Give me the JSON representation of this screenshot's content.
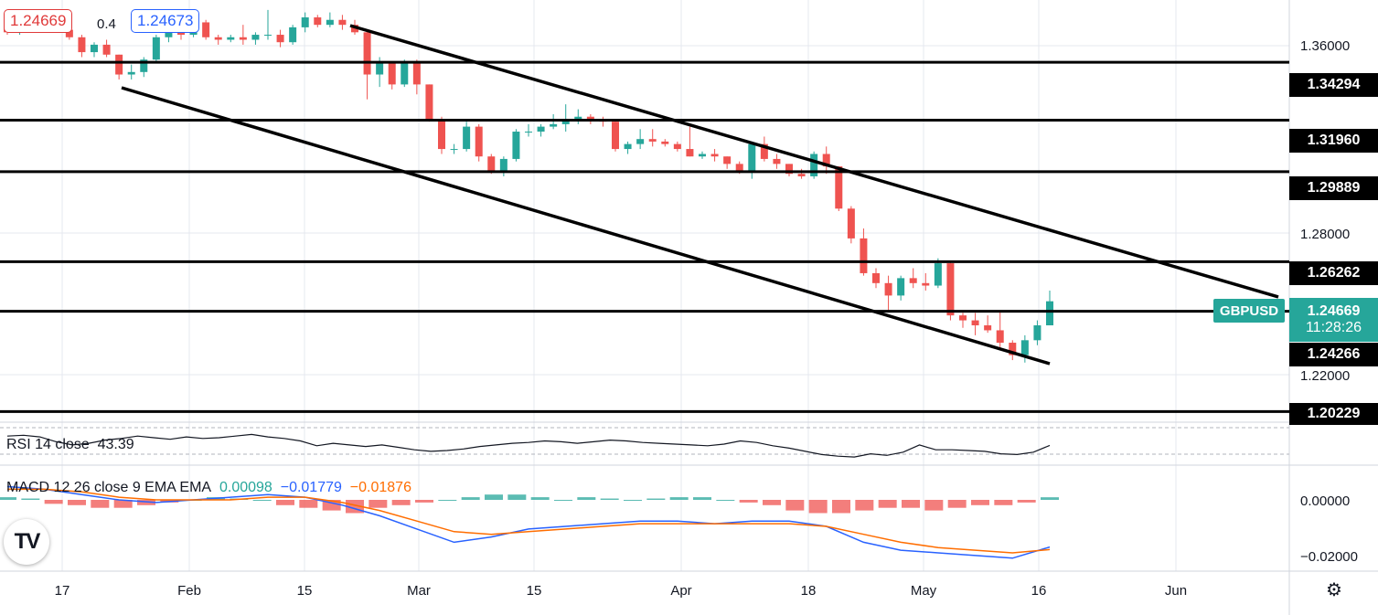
{
  "header": {
    "bid": "1.24669",
    "spread": "0.4",
    "ask": "1.24673"
  },
  "symbol": "GBPUSD",
  "current": {
    "price": "1.24669",
    "countdown": "11:28:26"
  },
  "levels": [
    "1.34294",
    "1.31960",
    "1.29889",
    "1.26262",
    "1.24266",
    "1.20229"
  ],
  "price_axis_labels": [
    "1.36000",
    "1.28000",
    "1.22000"
  ],
  "time_axis_labels": [
    "17",
    "Feb",
    "15",
    "Mar",
    "15",
    "Apr",
    "18",
    "May",
    "16",
    "Jun"
  ],
  "rsi": {
    "label": "RSI 14 close",
    "value": "43.39"
  },
  "macd": {
    "label": "MACD 12 26 close 9 EMA EMA",
    "hist": "0.00098",
    "macd": "−0.01779",
    "signal": "−0.01876",
    "axis_labels": [
      "0.00000",
      "−0.02000"
    ]
  },
  "colors": {
    "up": "#26a69a",
    "down": "#ef5350",
    "macd_line": "#2962ff",
    "signal_line": "#ff6d00",
    "hist_up": "#26a69a",
    "hist_down": "#ef5350"
  },
  "icons": {
    "logo": "tradingview-logo-icon",
    "settings": "gear-icon"
  },
  "chart_data": {
    "type": "candlestick",
    "symbol": "GBPUSD",
    "timeframe": "daily",
    "ylim": [
      1.198,
      1.368
    ],
    "horizontal_levels": [
      1.34294,
      1.3196,
      1.29889,
      1.26262,
      1.24266,
      1.20229
    ],
    "channel": {
      "upper": {
        "from": [
          "Feb 21",
          1.367
        ],
        "to": [
          "May 31",
          1.249
        ]
      },
      "lower": {
        "from": [
          "Jan 24",
          1.339
        ],
        "to": [
          "May 16",
          1.235
        ]
      }
    },
    "candles_ohlc": [
      [
        1.357,
        1.358,
        1.354,
        1.355
      ],
      [
        1.355,
        1.361,
        1.354,
        1.359
      ],
      [
        1.36,
        1.362,
        1.357,
        1.358
      ],
      [
        1.358,
        1.36,
        1.357,
        1.359
      ],
      [
        1.359,
        1.359,
        1.355,
        1.356
      ],
      [
        1.356,
        1.358,
        1.352,
        1.353
      ],
      [
        1.353,
        1.354,
        1.345,
        1.347
      ],
      [
        1.347,
        1.351,
        1.345,
        1.35
      ],
      [
        1.35,
        1.352,
        1.345,
        1.346
      ],
      [
        1.346,
        1.346,
        1.336,
        1.338
      ],
      [
        1.338,
        1.342,
        1.336,
        1.339
      ],
      [
        1.339,
        1.345,
        1.337,
        1.344
      ],
      [
        1.344,
        1.354,
        1.343,
        1.353
      ],
      [
        1.353,
        1.359,
        1.351,
        1.358
      ],
      [
        1.358,
        1.359,
        1.352,
        1.354
      ],
      [
        1.354,
        1.361,
        1.353,
        1.359
      ],
      [
        1.359,
        1.36,
        1.352,
        1.353
      ],
      [
        1.353,
        1.354,
        1.35,
        1.352
      ],
      [
        1.352,
        1.354,
        1.351,
        1.353
      ],
      [
        1.353,
        1.358,
        1.35,
        1.352
      ],
      [
        1.352,
        1.355,
        1.35,
        1.354
      ],
      [
        1.354,
        1.364,
        1.352,
        1.354
      ],
      [
        1.354,
        1.356,
        1.349,
        1.351
      ],
      [
        1.351,
        1.358,
        1.35,
        1.357
      ],
      [
        1.357,
        1.363,
        1.355,
        1.361
      ],
      [
        1.361,
        1.362,
        1.357,
        1.358
      ],
      [
        1.358,
        1.363,
        1.357,
        1.36
      ],
      [
        1.36,
        1.362,
        1.356,
        1.358
      ],
      [
        1.358,
        1.36,
        1.354,
        1.355
      ],
      [
        1.355,
        1.356,
        1.328,
        1.338
      ],
      [
        1.338,
        1.345,
        1.333,
        1.343
      ],
      [
        1.343,
        1.343,
        1.332,
        1.334
      ],
      [
        1.334,
        1.344,
        1.333,
        1.343
      ],
      [
        1.343,
        1.344,
        1.33,
        1.334
      ],
      [
        1.334,
        1.334,
        1.319,
        1.32
      ],
      [
        1.32,
        1.321,
        1.306,
        1.308
      ],
      [
        1.308,
        1.31,
        1.306,
        1.308
      ],
      [
        1.308,
        1.319,
        1.307,
        1.317
      ],
      [
        1.317,
        1.318,
        1.303,
        1.305
      ],
      [
        1.305,
        1.306,
        1.298,
        1.299
      ],
      [
        1.299,
        1.305,
        1.297,
        1.304
      ],
      [
        1.304,
        1.316,
        1.303,
        1.315
      ],
      [
        1.315,
        1.318,
        1.313,
        1.315
      ],
      [
        1.315,
        1.318,
        1.313,
        1.317
      ],
      [
        1.317,
        1.322,
        1.316,
        1.318
      ],
      [
        1.318,
        1.326,
        1.315,
        1.32
      ],
      [
        1.32,
        1.324,
        1.318,
        1.321
      ],
      [
        1.321,
        1.322,
        1.318,
        1.32
      ],
      [
        1.32,
        1.321,
        1.317,
        1.319
      ],
      [
        1.319,
        1.319,
        1.307,
        1.308
      ],
      [
        1.308,
        1.311,
        1.306,
        1.31
      ],
      [
        1.31,
        1.316,
        1.308,
        1.312
      ],
      [
        1.312,
        1.316,
        1.309,
        1.311
      ],
      [
        1.311,
        1.312,
        1.309,
        1.31
      ],
      [
        1.31,
        1.311,
        1.307,
        1.308
      ],
      [
        1.308,
        1.317,
        1.305,
        1.305
      ],
      [
        1.305,
        1.307,
        1.304,
        1.306
      ],
      [
        1.306,
        1.308,
        1.303,
        1.305
      ],
      [
        1.305,
        1.305,
        1.3,
        1.302
      ],
      [
        1.302,
        1.303,
        1.298,
        1.299
      ],
      [
        1.299,
        1.311,
        1.296,
        1.31
      ],
      [
        1.31,
        1.313,
        1.303,
        1.304
      ],
      [
        1.304,
        1.306,
        1.3,
        1.302
      ],
      [
        1.302,
        1.302,
        1.297,
        1.298
      ],
      [
        1.298,
        1.3,
        1.296,
        1.297
      ],
      [
        1.297,
        1.307,
        1.296,
        1.306
      ],
      [
        1.306,
        1.309,
        1.298,
        1.301
      ],
      [
        1.301,
        1.301,
        1.283,
        1.284
      ],
      [
        1.284,
        1.285,
        1.27,
        1.272
      ],
      [
        1.272,
        1.276,
        1.257,
        1.258
      ],
      [
        1.258,
        1.26,
        1.252,
        1.254
      ],
      [
        1.254,
        1.257,
        1.243,
        1.249
      ],
      [
        1.249,
        1.257,
        1.247,
        1.256
      ],
      [
        1.256,
        1.26,
        1.252,
        1.254
      ],
      [
        1.254,
        1.258,
        1.251,
        1.253
      ],
      [
        1.253,
        1.264,
        1.252,
        1.262
      ],
      [
        1.262,
        1.263,
        1.239,
        1.241
      ],
      [
        1.241,
        1.242,
        1.236,
        1.239
      ],
      [
        1.239,
        1.242,
        1.233,
        1.237
      ],
      [
        1.237,
        1.241,
        1.234,
        1.235
      ],
      [
        1.235,
        1.243,
        1.228,
        1.23
      ],
      [
        1.23,
        1.231,
        1.223,
        1.225
      ],
      [
        1.225,
        1.233,
        1.222,
        1.231
      ],
      [
        1.231,
        1.239,
        1.229,
        1.237
      ],
      [
        1.237,
        1.251,
        1.237,
        1.24669
      ]
    ],
    "rsi_values": [
      55,
      56,
      54,
      48,
      44,
      46,
      50,
      52,
      55,
      53,
      51,
      54,
      52,
      53,
      55,
      57,
      54,
      52,
      49,
      43,
      46,
      44,
      42,
      44,
      41,
      38,
      36,
      37,
      39,
      42,
      44,
      46,
      47,
      49,
      48,
      46,
      48,
      50,
      49,
      47,
      46,
      45,
      44,
      43,
      45,
      49,
      47,
      43,
      40,
      36,
      32,
      30,
      29,
      33,
      31,
      35,
      44,
      38,
      38,
      37,
      36,
      33,
      32,
      35,
      43.39
    ],
    "macd_hist": [
      0.001,
      0.0005,
      -0.0015,
      -0.002,
      -0.003,
      -0.003,
      -0.002,
      -0.001,
      0.0,
      0.001,
      0.0005,
      0.0,
      -0.002,
      -0.003,
      -0.004,
      -0.005,
      -0.003,
      -0.002,
      -0.001,
      0.0,
      0.001,
      0.002,
      0.002,
      0.001,
      0.0,
      0.001,
      0.0005,
      0.0,
      0.0005,
      0.001,
      0.001,
      0.0,
      -0.001,
      -0.002,
      -0.004,
      -0.005,
      -0.005,
      -0.004,
      -0.003,
      -0.003,
      -0.004,
      -0.003,
      -0.002,
      -0.002,
      -0.001,
      0.00098
    ],
    "macd_line": [
      0.005,
      0.004,
      0.002,
      0.0,
      -0.001,
      0.0,
      0.001,
      0.002,
      0.001,
      -0.002,
      -0.006,
      -0.011,
      -0.016,
      -0.014,
      -0.011,
      -0.01,
      -0.009,
      -0.008,
      -0.008,
      -0.009,
      -0.008,
      -0.008,
      -0.01,
      -0.016,
      -0.019,
      -0.02,
      -0.021,
      -0.022,
      -0.01779
    ],
    "signal_line": [
      0.004,
      0.004,
      0.003,
      0.001,
      0.0,
      0.0,
      0.0,
      0.001,
      0.001,
      -0.001,
      -0.004,
      -0.008,
      -0.012,
      -0.013,
      -0.012,
      -0.011,
      -0.01,
      -0.009,
      -0.009,
      -0.009,
      -0.009,
      -0.009,
      -0.01,
      -0.013,
      -0.016,
      -0.018,
      -0.019,
      -0.02,
      -0.01876
    ]
  }
}
